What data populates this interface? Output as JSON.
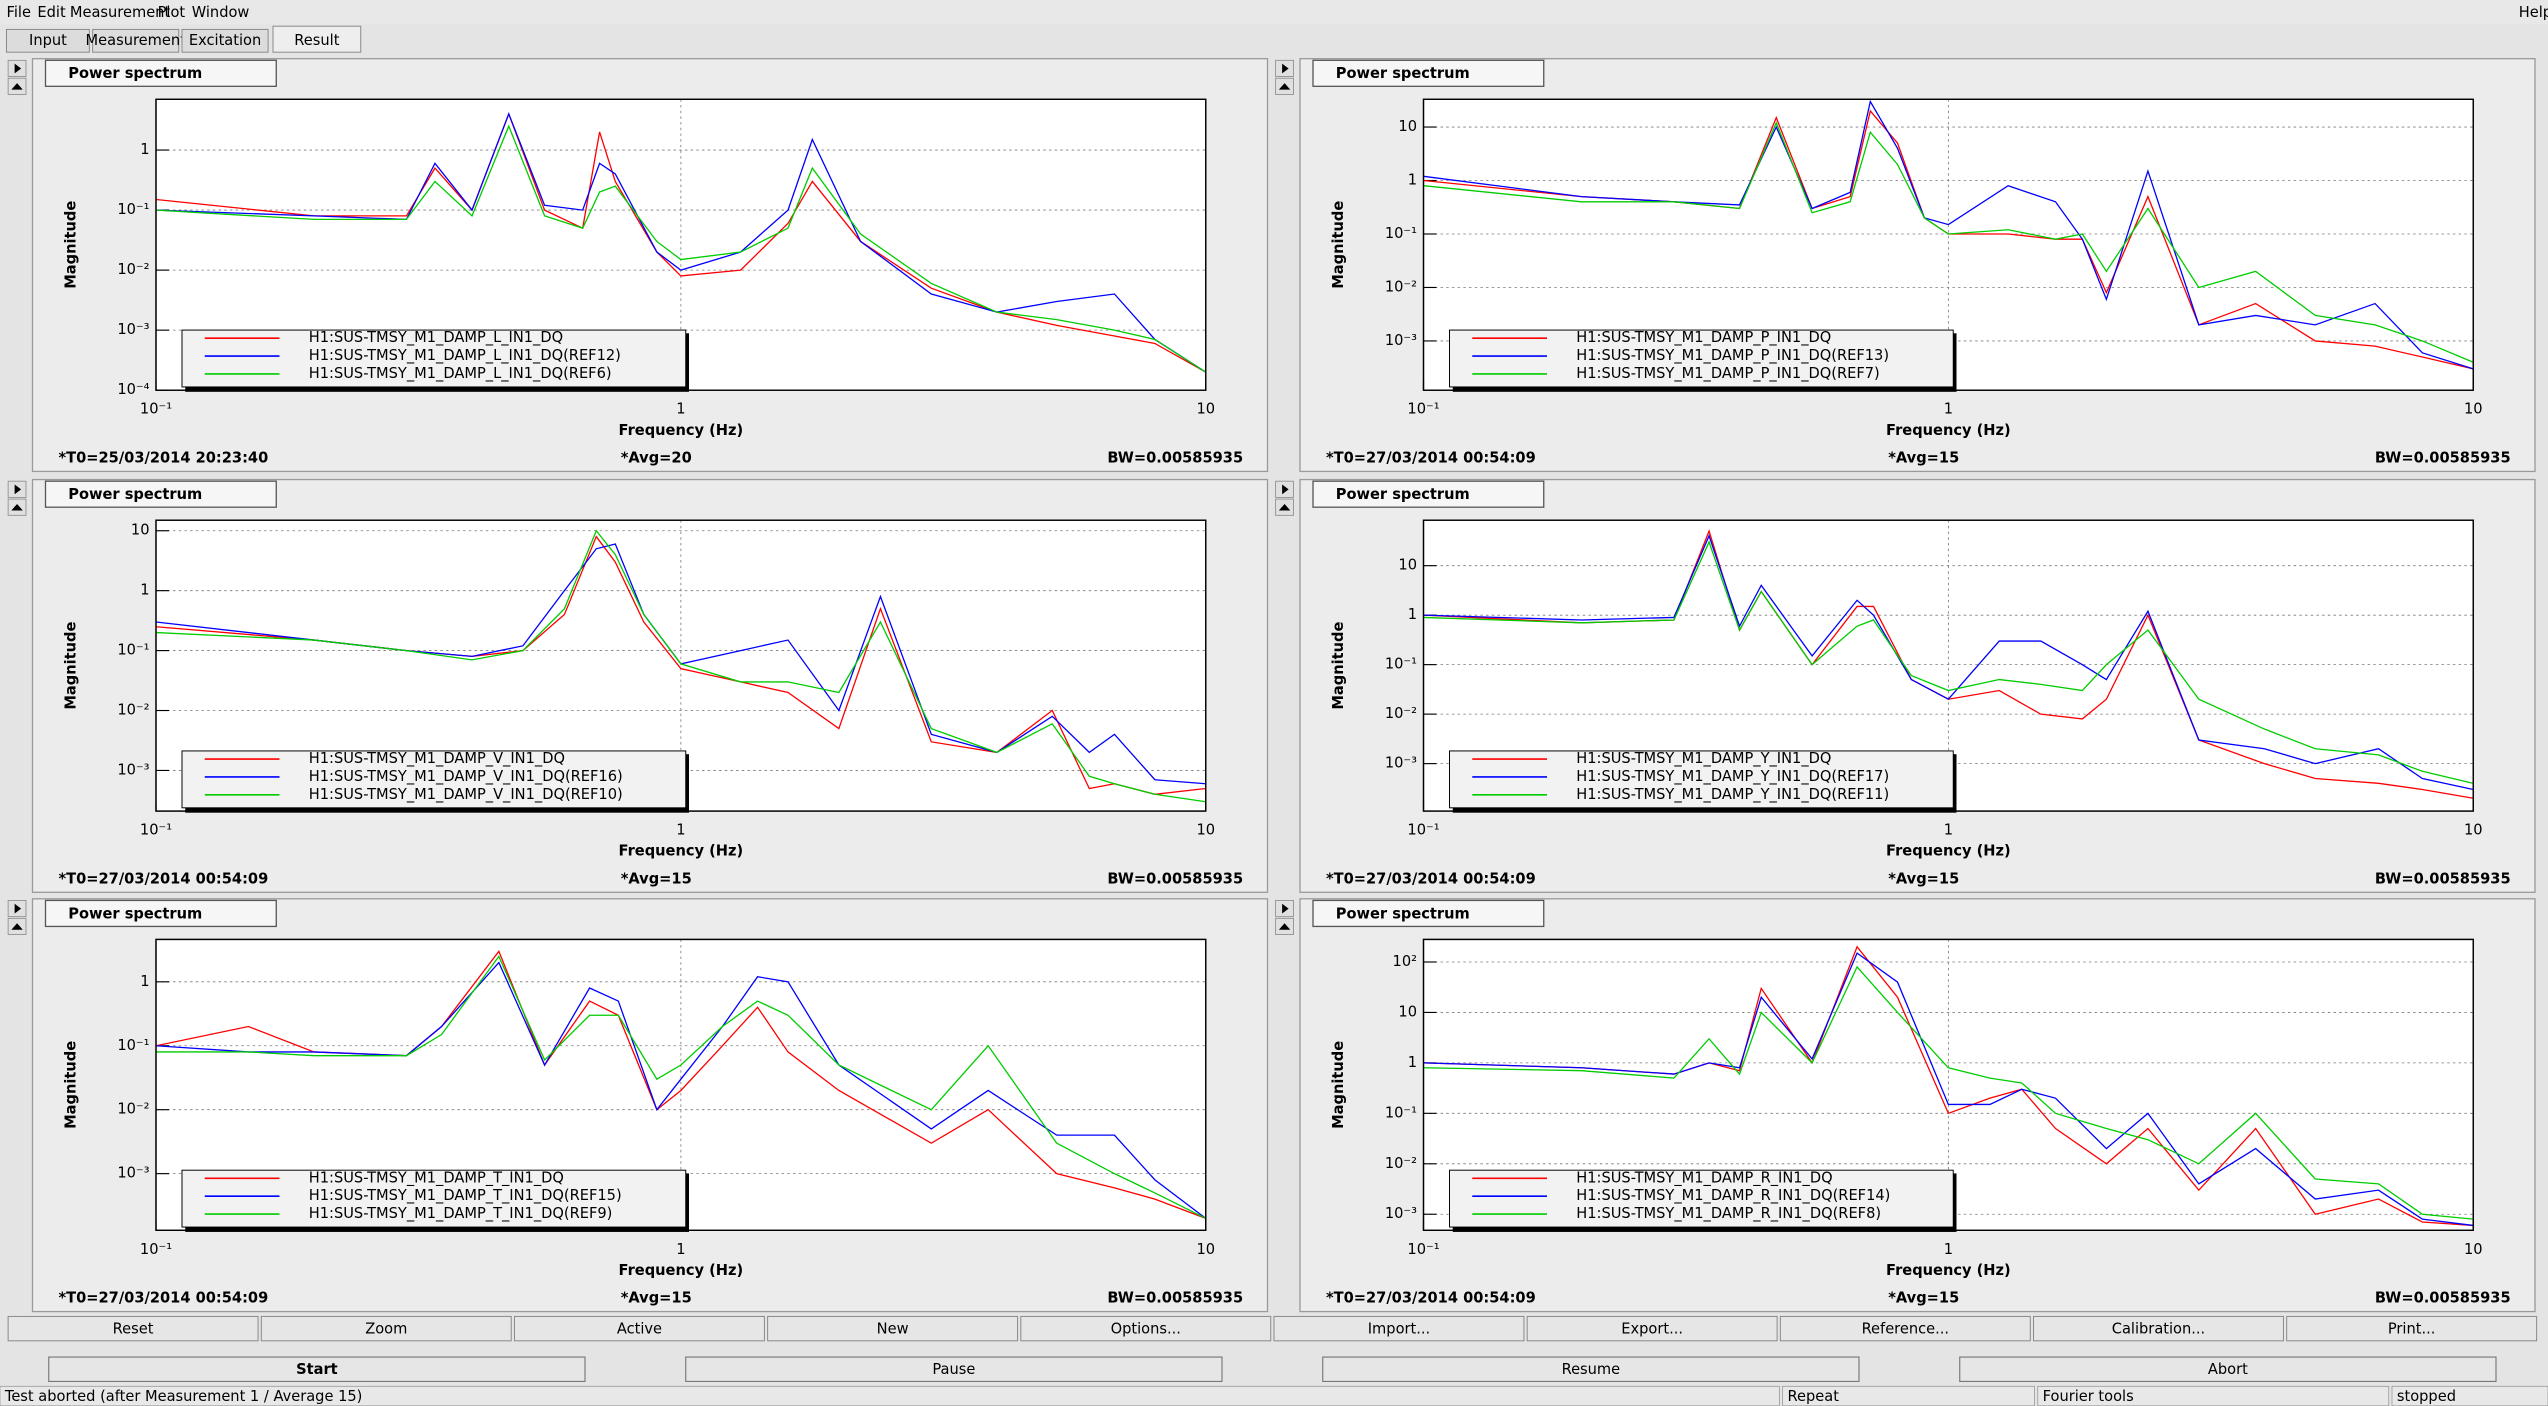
{
  "menu": [
    "File",
    "Edit",
    "Measurement",
    "Plot",
    "Window"
  ],
  "help": "Help",
  "tabs": {
    "items": [
      "Input",
      "Measurement",
      "Excitation",
      "Result"
    ],
    "selected": 3
  },
  "chart_data": [
    {
      "type": "line",
      "title": "Power spectrum",
      "xlabel": "Frequency (Hz)",
      "ylabel": "Magnitude",
      "xlog": true,
      "ylog": true,
      "grid": true,
      "legend": "lower left",
      "xlim": [
        0.1,
        10
      ],
      "xticks": [
        {
          "value": 0.1,
          "label": "10⁻¹"
        },
        1,
        10
      ],
      "ylim": [
        0.0001,
        7
      ],
      "yticks": [
        {
          "value": 0.0001,
          "label": "10⁻⁴"
        },
        {
          "value": 0.001,
          "label": "10⁻³"
        },
        {
          "value": 0.01,
          "label": "10⁻²"
        },
        {
          "value": 0.1,
          "label": "10⁻¹"
        },
        1
      ],
      "x": [
        0.1,
        0.2,
        0.3,
        0.34,
        0.4,
        0.47,
        0.55,
        0.65,
        0.7,
        0.75,
        0.9,
        1,
        1.3,
        1.6,
        1.78,
        2.2,
        3,
        4,
        5.2,
        6.7,
        8,
        10
      ],
      "series": [
        {
          "name": "H1:SUS-TMSY_M1_DAMP_L_IN1_DQ",
          "color": "#ff0000",
          "values": [
            0.15,
            0.08,
            0.08,
            0.5,
            0.1,
            4,
            0.1,
            0.05,
            2,
            0.3,
            0.02,
            0.008,
            0.01,
            0.06,
            0.3,
            0.03,
            0.005,
            0.002,
            0.0012,
            0.0008,
            0.0006,
            0.0002
          ]
        },
        {
          "name": "H1:SUS-TMSY_M1_DAMP_L_IN1_DQ(REF12)",
          "color": "#0000ff",
          "values": [
            0.1,
            0.08,
            0.07,
            0.6,
            0.1,
            4,
            0.12,
            0.1,
            0.6,
            0.4,
            0.02,
            0.01,
            0.02,
            0.1,
            1.5,
            0.03,
            0.004,
            0.002,
            0.003,
            0.004,
            0.0007,
            0.0002
          ]
        },
        {
          "name": "H1:SUS-TMSY_M1_DAMP_L_IN1_DQ(REF6)",
          "color": "#00cc00",
          "values": [
            0.1,
            0.07,
            0.07,
            0.3,
            0.08,
            2.5,
            0.08,
            0.05,
            0.2,
            0.25,
            0.03,
            0.015,
            0.02,
            0.05,
            0.5,
            0.04,
            0.006,
            0.002,
            0.0015,
            0.001,
            0.0007,
            0.0002
          ]
        }
      ],
      "footer": {
        "t0": "*T0=25/03/2014 20:23:40",
        "avg": "*Avg=20",
        "bw": "BW=0.00585935",
        "color": "#00cc00"
      }
    },
    {
      "type": "line",
      "title": "Power spectrum",
      "xlabel": "Frequency (Hz)",
      "ylabel": "Magnitude",
      "xlog": true,
      "ylog": true,
      "grid": true,
      "legend": "lower left",
      "xlim": [
        0.1,
        10
      ],
      "xticks": [
        {
          "value": 0.1,
          "label": "10⁻¹"
        },
        1,
        10
      ],
      "ylim": [
        0.00012,
        33
      ],
      "yticks": [
        {
          "value": 0.001,
          "label": "10⁻³"
        },
        {
          "value": 0.01,
          "label": "10⁻²"
        },
        {
          "value": 0.1,
          "label": "10⁻¹"
        },
        1,
        10
      ],
      "x": [
        0.1,
        0.2,
        0.3,
        0.4,
        0.47,
        0.55,
        0.65,
        0.71,
        0.8,
        0.9,
        1,
        1.3,
        1.6,
        1.8,
        2,
        2.4,
        3,
        3.85,
        5,
        6.5,
        8,
        10
      ],
      "series": [
        {
          "name": "H1:SUS-TMSY_M1_DAMP_P_IN1_DQ",
          "color": "#ff0000",
          "values": [
            1,
            0.5,
            0.4,
            0.3,
            15,
            0.3,
            0.5,
            20,
            5,
            0.2,
            0.1,
            0.1,
            0.08,
            0.08,
            0.008,
            0.5,
            0.002,
            0.005,
            0.001,
            0.0008,
            0.0005,
            0.0003
          ]
        },
        {
          "name": "H1:SUS-TMSY_M1_DAMP_P_IN1_DQ(REF13)",
          "color": "#0000ff",
          "values": [
            1.2,
            0.5,
            0.4,
            0.35,
            10,
            0.3,
            0.6,
            30,
            4,
            0.2,
            0.15,
            0.8,
            0.4,
            0.08,
            0.006,
            1.5,
            0.002,
            0.003,
            0.002,
            0.005,
            0.0006,
            0.0003
          ]
        },
        {
          "name": "H1:SUS-TMSY_M1_DAMP_P_IN1_DQ(REF7)",
          "color": "#00cc00",
          "values": [
            0.8,
            0.4,
            0.4,
            0.3,
            12,
            0.25,
            0.4,
            8,
            2,
            0.2,
            0.1,
            0.12,
            0.08,
            0.1,
            0.02,
            0.3,
            0.01,
            0.02,
            0.003,
            0.002,
            0.001,
            0.0004
          ]
        }
      ],
      "footer": {
        "t0": "*T0=27/03/2014 00:54:09",
        "avg": "*Avg=15",
        "bw": "BW=0.00585935",
        "color": "#ff0000"
      }
    },
    {
      "type": "line",
      "title": "Power spectrum",
      "xlabel": "Frequency (Hz)",
      "ylabel": "Magnitude",
      "xlog": true,
      "ylog": true,
      "grid": true,
      "legend": "lower left",
      "xlim": [
        0.1,
        10
      ],
      "xticks": [
        {
          "value": 0.1,
          "label": "10⁻¹"
        },
        1,
        10
      ],
      "ylim": [
        0.00021,
        15
      ],
      "yticks": [
        {
          "value": 0.001,
          "label": "10⁻³"
        },
        {
          "value": 0.01,
          "label": "10⁻²"
        },
        {
          "value": 0.1,
          "label": "10⁻¹"
        },
        1,
        10
      ],
      "x": [
        0.1,
        0.2,
        0.3,
        0.4,
        0.5,
        0.6,
        0.69,
        0.75,
        0.85,
        1,
        1.3,
        1.6,
        2,
        2.4,
        3,
        4,
        5.1,
        6,
        6.7,
        8,
        10
      ],
      "series": [
        {
          "name": "H1:SUS-TMSY_M1_DAMP_V_IN1_DQ",
          "color": "#ff0000",
          "values": [
            0.25,
            0.15,
            0.1,
            0.08,
            0.1,
            0.4,
            8,
            3,
            0.3,
            0.05,
            0.03,
            0.02,
            0.005,
            0.5,
            0.003,
            0.002,
            0.01,
            0.0005,
            0.0006,
            0.0004,
            0.0005
          ]
        },
        {
          "name": "H1:SUS-TMSY_M1_DAMP_V_IN1_DQ(REF16)",
          "color": "#0000ff",
          "values": [
            0.3,
            0.15,
            0.1,
            0.08,
            0.12,
            1,
            5,
            6,
            0.4,
            0.06,
            0.1,
            0.15,
            0.01,
            0.8,
            0.004,
            0.002,
            0.008,
            0.002,
            0.004,
            0.0007,
            0.0006
          ]
        },
        {
          "name": "H1:SUS-TMSY_M1_DAMP_V_IN1_DQ(REF10)",
          "color": "#00cc00",
          "values": [
            0.2,
            0.15,
            0.1,
            0.07,
            0.1,
            0.5,
            10,
            4,
            0.4,
            0.06,
            0.03,
            0.03,
            0.02,
            0.3,
            0.005,
            0.002,
            0.006,
            0.0008,
            0.0006,
            0.0004,
            0.0003
          ]
        }
      ],
      "footer": {
        "t0": "*T0=27/03/2014 00:54:09",
        "avg": "*Avg=15",
        "bw": "BW=0.00585935",
        "color": "#ff0000"
      }
    },
    {
      "type": "line",
      "title": "Power spectrum",
      "xlabel": "Frequency (Hz)",
      "ylabel": "Magnitude",
      "xlog": true,
      "ylog": true,
      "grid": true,
      "legend": "lower left",
      "xlim": [
        0.1,
        10
      ],
      "xticks": [
        {
          "value": 0.1,
          "label": "10⁻¹"
        },
        1,
        10
      ],
      "ylim": [
        0.00011,
        83
      ],
      "yticks": [
        {
          "value": 0.001,
          "label": "10⁻³"
        },
        {
          "value": 0.01,
          "label": "10⁻²"
        },
        {
          "value": 0.1,
          "label": "10⁻¹"
        },
        1,
        10
      ],
      "x": [
        0.1,
        0.2,
        0.3,
        0.35,
        0.4,
        0.44,
        0.55,
        0.67,
        0.72,
        0.85,
        1,
        1.25,
        1.5,
        1.8,
        2,
        2.4,
        3,
        4,
        5,
        6.6,
        8,
        10
      ],
      "series": [
        {
          "name": "H1:SUS-TMSY_M1_DAMP_Y_IN1_DQ",
          "color": "#ff0000",
          "values": [
            1,
            0.7,
            0.8,
            50,
            0.5,
            3,
            0.1,
            1.5,
            1.5,
            0.05,
            0.02,
            0.03,
            0.01,
            0.008,
            0.02,
            1,
            0.003,
            0.001,
            0.0005,
            0.0004,
            0.0003,
            0.0002
          ]
        },
        {
          "name": "H1:SUS-TMSY_M1_DAMP_Y_IN1_DQ(REF17)",
          "color": "#0000ff",
          "values": [
            1,
            0.8,
            0.9,
            40,
            0.6,
            4,
            0.15,
            2,
            1,
            0.05,
            0.02,
            0.3,
            0.3,
            0.1,
            0.05,
            1.2,
            0.003,
            0.002,
            0.001,
            0.002,
            0.0005,
            0.0003
          ]
        },
        {
          "name": "H1:SUS-TMSY_M1_DAMP_Y_IN1_DQ(REF11)",
          "color": "#00cc00",
          "values": [
            0.9,
            0.7,
            0.8,
            30,
            0.5,
            3,
            0.1,
            0.6,
            0.8,
            0.06,
            0.03,
            0.05,
            0.04,
            0.03,
            0.1,
            0.5,
            0.02,
            0.005,
            0.002,
            0.0015,
            0.0007,
            0.0004
          ]
        }
      ],
      "footer": {
        "t0": "*T0=27/03/2014 00:54:09",
        "avg": "*Avg=15",
        "bw": "BW=0.00585935",
        "color": "#ff0000"
      }
    },
    {
      "type": "line",
      "title": "Power spectrum",
      "xlabel": "Frequency (Hz)",
      "ylabel": "Magnitude",
      "xlog": true,
      "ylog": true,
      "grid": true,
      "legend": "lower left",
      "xlim": [
        0.1,
        10
      ],
      "xticks": [
        {
          "value": 0.1,
          "label": "10⁻¹"
        },
        1,
        10
      ],
      "ylim": [
        0.00013,
        4.6
      ],
      "yticks": [
        {
          "value": 0.001,
          "label": "10⁻³"
        },
        {
          "value": 0.01,
          "label": "10⁻²"
        },
        {
          "value": 0.1,
          "label": "10⁻¹"
        },
        1
      ],
      "x": [
        0.1,
        0.15,
        0.2,
        0.3,
        0.35,
        0.45,
        0.55,
        0.67,
        0.76,
        0.9,
        1,
        1.2,
        1.4,
        1.6,
        2,
        3,
        3.85,
        5.2,
        6.7,
        8,
        10
      ],
      "series": [
        {
          "name": "H1:SUS-TMSY_M1_DAMP_T_IN1_DQ",
          "color": "#ff0000",
          "values": [
            0.1,
            0.2,
            0.08,
            0.07,
            0.2,
            3,
            0.05,
            0.5,
            0.3,
            0.01,
            0.02,
            0.1,
            0.4,
            0.08,
            0.02,
            0.003,
            0.01,
            0.001,
            0.0006,
            0.0004,
            0.0002
          ]
        },
        {
          "name": "H1:SUS-TMSY_M1_DAMP_T_IN1_DQ(REF15)",
          "color": "#0000ff",
          "values": [
            0.1,
            0.08,
            0.08,
            0.07,
            0.2,
            2,
            0.05,
            0.8,
            0.5,
            0.01,
            0.03,
            0.2,
            1.2,
            1,
            0.05,
            0.005,
            0.02,
            0.004,
            0.004,
            0.0008,
            0.0002
          ]
        },
        {
          "name": "H1:SUS-TMSY_M1_DAMP_T_IN1_DQ(REF9)",
          "color": "#00cc00",
          "values": [
            0.08,
            0.08,
            0.07,
            0.07,
            0.15,
            2.5,
            0.06,
            0.3,
            0.3,
            0.03,
            0.05,
            0.2,
            0.5,
            0.3,
            0.05,
            0.01,
            0.1,
            0.003,
            0.001,
            0.0005,
            0.0002
          ]
        }
      ],
      "footer": {
        "t0": "*T0=27/03/2014 00:54:09",
        "avg": "*Avg=15",
        "bw": "BW=0.00585935",
        "color": "#ff0000"
      }
    },
    {
      "type": "line",
      "title": "Power spectrum",
      "xlabel": "Frequency (Hz)",
      "ylabel": "Magnitude",
      "xlog": true,
      "ylog": true,
      "grid": true,
      "legend": "lower left",
      "xlim": [
        0.1,
        10
      ],
      "xticks": [
        {
          "value": 0.1,
          "label": "10⁻¹"
        },
        1,
        10
      ],
      "ylim": [
        0.00048,
        280
      ],
      "yticks": [
        {
          "value": 0.001,
          "label": "10⁻³"
        },
        {
          "value": 0.01,
          "label": "10⁻²"
        },
        {
          "value": 0.1,
          "label": "10⁻¹"
        },
        1,
        10,
        {
          "value": 100,
          "label": "10²"
        }
      ],
      "x": [
        0.1,
        0.2,
        0.3,
        0.35,
        0.4,
        0.44,
        0.55,
        0.67,
        0.8,
        1,
        1.2,
        1.38,
        1.6,
        2,
        2.4,
        3,
        3.85,
        5,
        6.6,
        8,
        10
      ],
      "series": [
        {
          "name": "H1:SUS-TMSY_M1_DAMP_R_IN1_DQ",
          "color": "#ff0000",
          "values": [
            1,
            0.8,
            0.6,
            1,
            0.7,
            30,
            1,
            200,
            20,
            0.1,
            0.2,
            0.3,
            0.05,
            0.01,
            0.05,
            0.003,
            0.05,
            0.001,
            0.002,
            0.0007,
            0.0006
          ]
        },
        {
          "name": "H1:SUS-TMSY_M1_DAMP_R_IN1_DQ(REF14)",
          "color": "#0000ff",
          "values": [
            1,
            0.8,
            0.6,
            1,
            0.8,
            20,
            1.2,
            150,
            40,
            0.15,
            0.15,
            0.3,
            0.2,
            0.02,
            0.1,
            0.004,
            0.02,
            0.002,
            0.003,
            0.0008,
            0.0006
          ]
        },
        {
          "name": "H1:SUS-TMSY_M1_DAMP_R_IN1_DQ(REF8)",
          "color": "#00cc00",
          "values": [
            0.8,
            0.7,
            0.5,
            3,
            0.6,
            10,
            1,
            80,
            10,
            0.8,
            0.5,
            0.4,
            0.1,
            0.05,
            0.03,
            0.01,
            0.1,
            0.005,
            0.004,
            0.001,
            0.0008
          ]
        }
      ],
      "footer": {
        "t0": "*T0=27/03/2014 00:54:09",
        "avg": "*Avg=15",
        "bw": "BW=0.00585935",
        "color": "#ff0000"
      }
    }
  ],
  "buttons": [
    "Reset",
    "Zoom",
    "Active",
    "New",
    "Options...",
    "Import...",
    "Export...",
    "Reference...",
    "Calibration...",
    "Print..."
  ],
  "controls": [
    {
      "label": "Start",
      "enabled": true
    },
    {
      "label": "Pause",
      "enabled": false
    },
    {
      "label": "Resume",
      "enabled": false
    },
    {
      "label": "Abort",
      "enabled": false
    }
  ],
  "status": [
    "Test aborted (after Measurement 1 / Average 15)",
    "Repeat",
    "Fourier tools",
    "stopped"
  ]
}
